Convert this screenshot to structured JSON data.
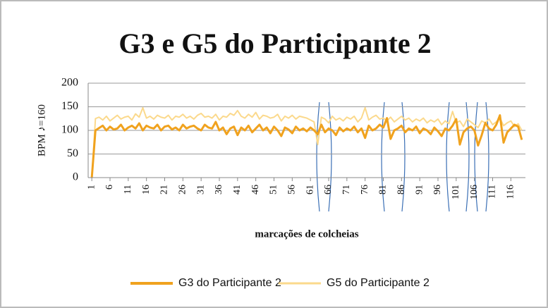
{
  "chart_data": {
    "type": "line",
    "title": "G3 e G5 do Participante 2",
    "x_label": "marcações de colcheias",
    "y_label": "BPM ♪=160",
    "x": [
      1,
      2,
      3,
      4,
      5,
      6,
      7,
      8,
      9,
      10,
      11,
      12,
      13,
      14,
      15,
      16,
      17,
      18,
      19,
      20,
      21,
      22,
      23,
      24,
      25,
      26,
      27,
      28,
      29,
      30,
      31,
      32,
      33,
      34,
      35,
      36,
      37,
      38,
      39,
      40,
      41,
      42,
      43,
      44,
      45,
      46,
      47,
      48,
      49,
      50,
      51,
      52,
      53,
      54,
      55,
      56,
      57,
      58,
      59,
      60,
      61,
      62,
      63,
      64,
      65,
      66,
      67,
      68,
      69,
      70,
      71,
      72,
      73,
      74,
      75,
      76,
      77,
      78,
      79,
      80,
      81,
      82,
      83,
      84,
      85,
      86,
      87,
      88,
      89,
      90,
      91,
      92,
      93,
      94,
      95,
      96,
      97,
      98,
      99,
      100,
      101,
      102,
      103,
      104,
      105,
      106,
      107,
      108,
      109,
      110,
      111,
      112,
      113,
      114,
      115,
      116,
      117,
      118,
      119
    ],
    "series": [
      {
        "name": "G3 do Participante 2",
        "color": "#f0a21e",
        "width": 3,
        "values": [
          0,
          100,
          105,
          110,
          100,
          108,
          102,
          104,
          112,
          100,
          106,
          110,
          104,
          115,
          100,
          110,
          106,
          104,
          112,
          100,
          108,
          110,
          102,
          106,
          100,
          112,
          104,
          108,
          110,
          104,
          100,
          112,
          106,
          104,
          118,
          100,
          106,
          92,
          104,
          108,
          90,
          106,
          100,
          110,
          96,
          104,
          112,
          100,
          106,
          94,
          108,
          100,
          88,
          106,
          102,
          94,
          108,
          100,
          104,
          98,
          106,
          100,
          92,
          112,
          96,
          104,
          100,
          90,
          106,
          98,
          104,
          100,
          108,
          96,
          104,
          84,
          110,
          100,
          104,
          112,
          106,
          126,
          82,
          100,
          104,
          110,
          96,
          104,
          100,
          108,
          94,
          104,
          100,
          92,
          106,
          98,
          88,
          104,
          100,
          110,
          124,
          70,
          96,
          104,
          108,
          100,
          68,
          90,
          116,
          104,
          100,
          112,
          132,
          74,
          96,
          104,
          112,
          108,
          80
        ]
      },
      {
        "name": "G5 do Participante 2",
        "color": "#fbd98c",
        "width": 2,
        "values": [
          0,
          125,
          128,
          122,
          130,
          120,
          126,
          132,
          124,
          128,
          130,
          122,
          135,
          128,
          148,
          126,
          130,
          124,
          132,
          128,
          126,
          132,
          122,
          130,
          128,
          134,
          126,
          130,
          124,
          132,
          136,
          128,
          130,
          126,
          134,
          122,
          130,
          128,
          136,
          132,
          142,
          130,
          126,
          134,
          128,
          138,
          124,
          132,
          130,
          126,
          128,
          134,
          120,
          130,
          126,
          132,
          124,
          130,
          128,
          126,
          122,
          118,
          70,
          128,
          124,
          116,
          130,
          122,
          126,
          120,
          128,
          124,
          130,
          118,
          126,
          148,
          122,
          128,
          132,
          124,
          126,
          120,
          128,
          118,
          124,
          130,
          122,
          126,
          118,
          124,
          120,
          126,
          116,
          122,
          118,
          124,
          112,
          120,
          114,
          140,
          116,
          120,
          108,
          124,
          118,
          112,
          106,
          120,
          116,
          124,
          112,
          118,
          126,
          110,
          116,
          120,
          108,
          114,
          100
        ]
      }
    ],
    "xlim": [
      0,
      120
    ],
    "xticks": [
      1,
      6,
      11,
      16,
      21,
      26,
      31,
      36,
      41,
      46,
      51,
      56,
      61,
      66,
      71,
      76,
      81,
      86,
      91,
      96,
      101,
      106,
      111,
      116
    ],
    "ylim": [
      0,
      200
    ],
    "yticks": [
      0,
      50,
      100,
      150,
      200
    ],
    "grid": true,
    "legend": "bottom"
  }
}
